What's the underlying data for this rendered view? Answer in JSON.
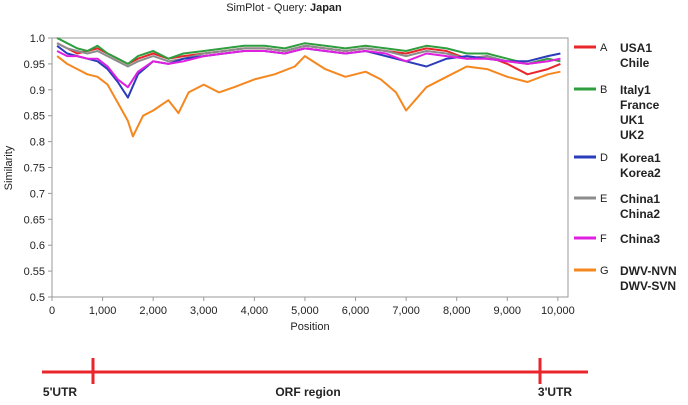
{
  "chart_data": {
    "type": "line",
    "title_prefix": "SimPlot - Query: ",
    "title_query": "Japan",
    "xlabel": "Position",
    "ylabel": "Similarity",
    "xlim": [
      0,
      10200
    ],
    "ylim": [
      0.5,
      1.0
    ],
    "x_ticks": [
      0,
      1000,
      2000,
      3000,
      4000,
      5000,
      6000,
      7000,
      8000,
      9000,
      10000
    ],
    "x_tick_labels": [
      "0",
      "1,000",
      "2,000",
      "3,000",
      "4,000",
      "5,000",
      "6,000",
      "7,000",
      "8,000",
      "9,000",
      "10,000"
    ],
    "y_ticks": [
      0.5,
      0.55,
      0.6,
      0.65,
      0.7,
      0.75,
      0.8,
      0.85,
      0.9,
      0.95,
      1.0
    ],
    "y_tick_labels": [
      "0.5",
      "0.55",
      "0.6",
      "0.65",
      "0.7",
      "0.75",
      "0.8",
      "0.85",
      "0.9",
      "0.95",
      "1.0"
    ],
    "legend_position": "right",
    "series": [
      {
        "letter": "A",
        "color": "#e8262b",
        "labels": [
          "USA1",
          "Chile"
        ],
        "x": [
          100,
          300,
          500,
          700,
          900,
          1100,
          1300,
          1500,
          1700,
          2000,
          2300,
          2600,
          3000,
          3400,
          3800,
          4200,
          4600,
          5000,
          5400,
          5800,
          6200,
          6600,
          7000,
          7400,
          7800,
          8200,
          8600,
          9000,
          9400,
          9800,
          10050
        ],
        "values": [
          0.99,
          0.98,
          0.97,
          0.975,
          0.98,
          0.97,
          0.96,
          0.95,
          0.96,
          0.97,
          0.96,
          0.965,
          0.97,
          0.975,
          0.98,
          0.98,
          0.975,
          0.985,
          0.98,
          0.975,
          0.98,
          0.975,
          0.97,
          0.98,
          0.975,
          0.96,
          0.965,
          0.95,
          0.93,
          0.94,
          0.95
        ]
      },
      {
        "letter": "B",
        "color": "#2e9e3e",
        "labels": [
          "Italy1",
          "France",
          "UK1",
          "UK2"
        ],
        "x": [
          100,
          300,
          500,
          700,
          900,
          1100,
          1300,
          1500,
          1700,
          2000,
          2300,
          2600,
          3000,
          3400,
          3800,
          4200,
          4600,
          5000,
          5400,
          5800,
          6200,
          6600,
          7000,
          7400,
          7800,
          8200,
          8600,
          9000,
          9400,
          9800,
          10050
        ],
        "values": [
          1.0,
          0.99,
          0.98,
          0.975,
          0.985,
          0.97,
          0.96,
          0.95,
          0.965,
          0.975,
          0.96,
          0.97,
          0.975,
          0.98,
          0.985,
          0.985,
          0.98,
          0.99,
          0.985,
          0.98,
          0.985,
          0.98,
          0.975,
          0.985,
          0.98,
          0.97,
          0.97,
          0.96,
          0.95,
          0.96,
          0.955
        ]
      },
      {
        "letter": "D",
        "color": "#2b3cba",
        "labels": [
          "Korea1",
          "Korea2"
        ],
        "x": [
          100,
          300,
          500,
          700,
          900,
          1100,
          1300,
          1500,
          1700,
          2000,
          2300,
          2600,
          3000,
          3400,
          3800,
          4200,
          4600,
          5000,
          5400,
          5800,
          6200,
          6600,
          7000,
          7400,
          7800,
          8200,
          8600,
          9000,
          9400,
          9800,
          10050
        ],
        "values": [
          0.985,
          0.97,
          0.965,
          0.96,
          0.955,
          0.94,
          0.915,
          0.885,
          0.93,
          0.955,
          0.95,
          0.96,
          0.965,
          0.97,
          0.975,
          0.975,
          0.97,
          0.98,
          0.975,
          0.97,
          0.975,
          0.965,
          0.955,
          0.945,
          0.96,
          0.965,
          0.96,
          0.955,
          0.955,
          0.965,
          0.97
        ]
      },
      {
        "letter": "E",
        "color": "#8c8c8c",
        "labels": [
          "China1",
          "China2"
        ],
        "x": [
          100,
          300,
          500,
          700,
          900,
          1100,
          1300,
          1500,
          1700,
          2000,
          2300,
          2600,
          3000,
          3400,
          3800,
          4200,
          4600,
          5000,
          5400,
          5800,
          6200,
          6600,
          7000,
          7400,
          7800,
          8200,
          8600,
          9000,
          9400,
          9800,
          10050
        ],
        "values": [
          0.99,
          0.98,
          0.975,
          0.97,
          0.975,
          0.965,
          0.955,
          0.945,
          0.955,
          0.965,
          0.955,
          0.96,
          0.97,
          0.975,
          0.98,
          0.98,
          0.975,
          0.985,
          0.98,
          0.975,
          0.98,
          0.975,
          0.965,
          0.975,
          0.97,
          0.96,
          0.965,
          0.955,
          0.95,
          0.955,
          0.96
        ]
      },
      {
        "letter": "F",
        "color": "#e020e0",
        "labels": [
          "China3"
        ],
        "x": [
          100,
          300,
          500,
          700,
          900,
          1100,
          1300,
          1500,
          1700,
          2000,
          2300,
          2600,
          3000,
          3400,
          3800,
          4200,
          4600,
          5000,
          5400,
          5800,
          6200,
          6600,
          7000,
          7400,
          7800,
          8200,
          8600,
          9000,
          9400,
          9800,
          10050
        ],
        "values": [
          0.975,
          0.965,
          0.965,
          0.96,
          0.96,
          0.945,
          0.92,
          0.905,
          0.935,
          0.955,
          0.95,
          0.955,
          0.965,
          0.97,
          0.975,
          0.975,
          0.97,
          0.98,
          0.975,
          0.97,
          0.975,
          0.97,
          0.955,
          0.97,
          0.965,
          0.96,
          0.96,
          0.955,
          0.95,
          0.955,
          0.96
        ]
      },
      {
        "letter": "G",
        "color": "#f5871f",
        "labels": [
          "DWV-NVN",
          "DWV-SVN"
        ],
        "x": [
          100,
          300,
          500,
          700,
          900,
          1100,
          1300,
          1500,
          1600,
          1800,
          2000,
          2300,
          2500,
          2700,
          3000,
          3300,
          3600,
          4000,
          4400,
          4800,
          5000,
          5400,
          5800,
          6200,
          6500,
          6800,
          7000,
          7400,
          7800,
          8200,
          8600,
          9000,
          9400,
          9800,
          10050
        ],
        "values": [
          0.965,
          0.95,
          0.94,
          0.93,
          0.925,
          0.91,
          0.875,
          0.84,
          0.81,
          0.85,
          0.86,
          0.88,
          0.855,
          0.895,
          0.91,
          0.895,
          0.905,
          0.92,
          0.93,
          0.945,
          0.965,
          0.94,
          0.925,
          0.935,
          0.92,
          0.895,
          0.86,
          0.905,
          0.925,
          0.945,
          0.94,
          0.925,
          0.915,
          0.93,
          0.935
        ]
      }
    ]
  },
  "genome_bar": {
    "left_label": "5'UTR",
    "center_label": "ORF region",
    "right_label": "3'UTR",
    "color": "#e8262b"
  }
}
